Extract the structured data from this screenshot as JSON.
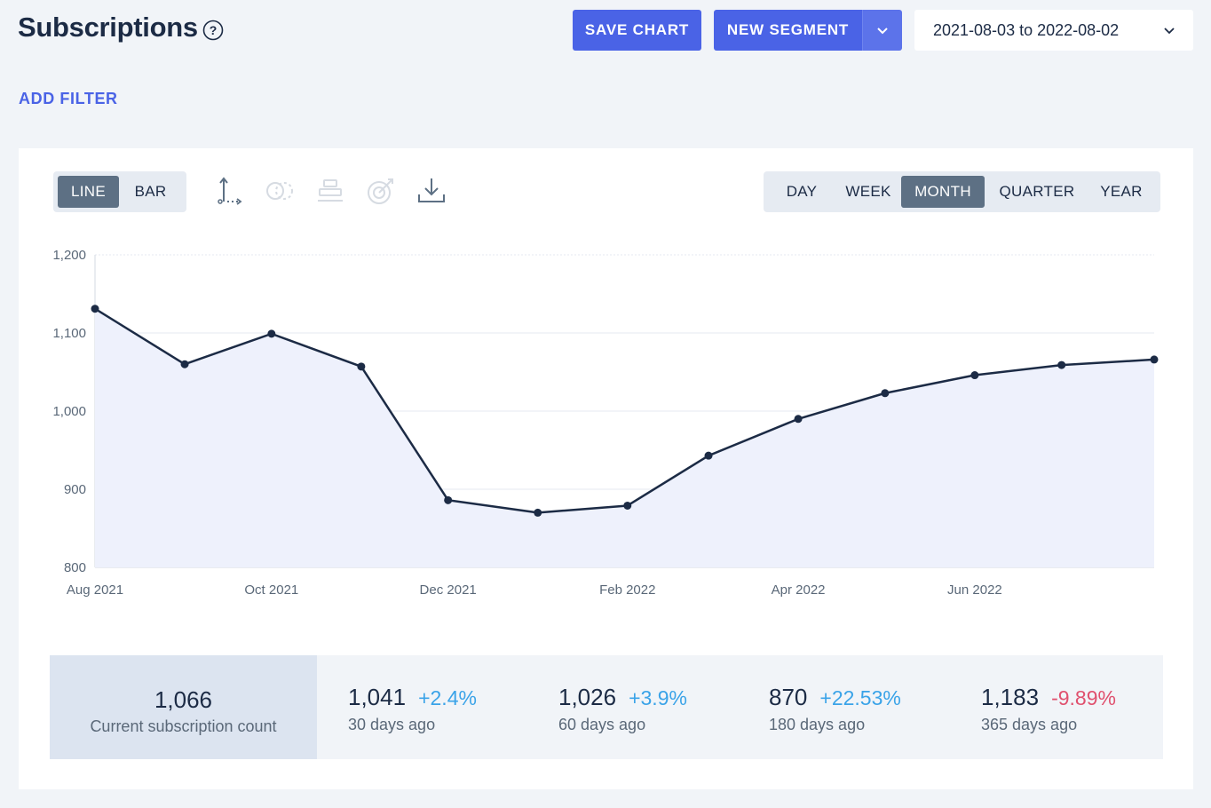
{
  "header": {
    "title": "Subscriptions",
    "help_icon": "question-circle-icon",
    "save_chart_label": "SAVE CHART",
    "new_segment_label": "NEW SEGMENT",
    "date_range": "2021-08-03 to 2022-08-02"
  },
  "filter": {
    "add_filter_label": "ADD FILTER"
  },
  "toolbar": {
    "chart_types": [
      {
        "label": "LINE",
        "active": true
      },
      {
        "label": "BAR",
        "active": false
      }
    ],
    "icons": [
      "axis-icon",
      "compare-icon",
      "stack-icon",
      "goal-icon",
      "download-icon"
    ],
    "periods": [
      {
        "label": "DAY",
        "active": false
      },
      {
        "label": "WEEK",
        "active": false
      },
      {
        "label": "MONTH",
        "active": true
      },
      {
        "label": "QUARTER",
        "active": false
      },
      {
        "label": "YEAR",
        "active": false
      }
    ]
  },
  "chart_data": {
    "type": "area",
    "title": "",
    "xlabel": "",
    "ylabel": "",
    "ylim": [
      800,
      1200
    ],
    "y_ticks": [
      800,
      900,
      1000,
      1100,
      1200
    ],
    "y_tick_labels": [
      "800",
      "900",
      "1,000",
      "1,100",
      "1,200"
    ],
    "x_tick_labels": [
      {
        "label": "Aug 2021",
        "date": "2021-08-01"
      },
      {
        "label": "Oct 2021",
        "date": "2021-10-01"
      },
      {
        "label": "Dec 2021",
        "date": "2021-12-01"
      },
      {
        "label": "Feb 2022",
        "date": "2022-02-01"
      },
      {
        "label": "Apr 2022",
        "date": "2022-04-01"
      },
      {
        "label": "Jun 2022",
        "date": "2022-06-01"
      }
    ],
    "x_range": [
      "2021-08-01",
      "2022-08-02"
    ],
    "grid": true,
    "series": [
      {
        "points": [
          {
            "x": "2021-08-01",
            "y": 1131
          },
          {
            "x": "2021-09-01",
            "y": 1060
          },
          {
            "x": "2021-10-01",
            "y": 1099
          },
          {
            "x": "2021-11-01",
            "y": 1057
          },
          {
            "x": "2021-12-01",
            "y": 886
          },
          {
            "x": "2022-01-01",
            "y": 870
          },
          {
            "x": "2022-02-01",
            "y": 879
          },
          {
            "x": "2022-03-01",
            "y": 943
          },
          {
            "x": "2022-04-01",
            "y": 990
          },
          {
            "x": "2022-05-01",
            "y": 1023
          },
          {
            "x": "2022-06-01",
            "y": 1046
          },
          {
            "x": "2022-07-01",
            "y": 1059
          },
          {
            "x": "2022-08-02",
            "y": 1066
          }
        ]
      }
    ],
    "line_color": "#1c2b45",
    "fill_color": "#eef1fc"
  },
  "stats": {
    "current": {
      "value": "1,066",
      "label": "Current subscription count"
    },
    "history": [
      {
        "value": "1,041",
        "change": "+2.4%",
        "label": "30 days ago",
        "positive": true
      },
      {
        "value": "1,026",
        "change": "+3.9%",
        "label": "60 days ago",
        "positive": true
      },
      {
        "value": "870",
        "change": "+22.53%",
        "label": "180 days ago",
        "positive": true
      },
      {
        "value": "1,183",
        "change": "-9.89%",
        "label": "365 days ago",
        "positive": false
      }
    ],
    "positive_color": "#3aa3e8",
    "negative_color": "#e0506e"
  }
}
